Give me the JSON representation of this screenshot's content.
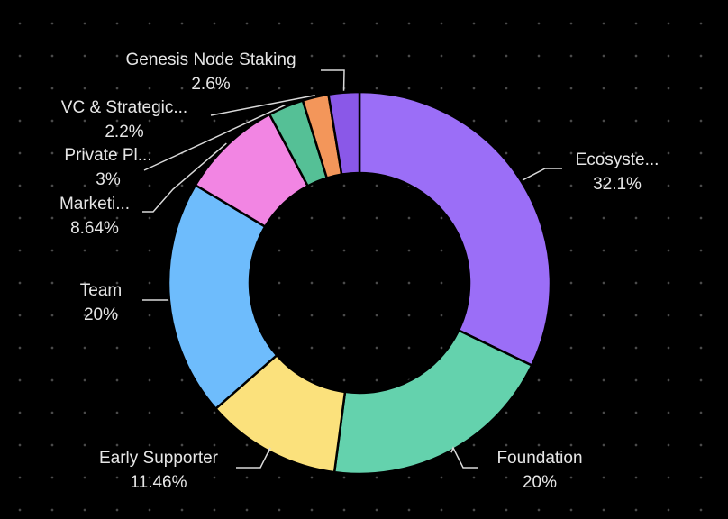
{
  "chart_data": {
    "type": "pie",
    "variant": "donut",
    "title": "",
    "legend": "none",
    "grid": false,
    "background_color": "#000000",
    "label_color": "#e6e6e6",
    "leader_color": "#d9d9d9",
    "slice_border_color": "#000000",
    "slices": [
      {
        "label": "Ecosyste...",
        "value": 32.1,
        "value_label": "32.1%",
        "color": "#9b6ef7"
      },
      {
        "label": "Foundation",
        "value": 20,
        "value_label": "20%",
        "color": "#64d2ad"
      },
      {
        "label": "Early Supporter",
        "value": 11.46,
        "value_label": "11.46%",
        "color": "#fbe17c"
      },
      {
        "label": "Team",
        "value": 20,
        "value_label": "20%",
        "color": "#6ebcfc"
      },
      {
        "label": "Marketi...",
        "value": 8.64,
        "value_label": "8.64%",
        "color": "#f285e3"
      },
      {
        "label": "Private Pl...",
        "value": 3,
        "value_label": "3%",
        "color": "#55c096"
      },
      {
        "label": "VC & Strategic...",
        "value": 2.2,
        "value_label": "2.2%",
        "color": "#f3965a"
      },
      {
        "label": "Genesis Node Staking",
        "value": 2.6,
        "value_label": "2.6%",
        "color": "#8a58e8"
      }
    ]
  }
}
